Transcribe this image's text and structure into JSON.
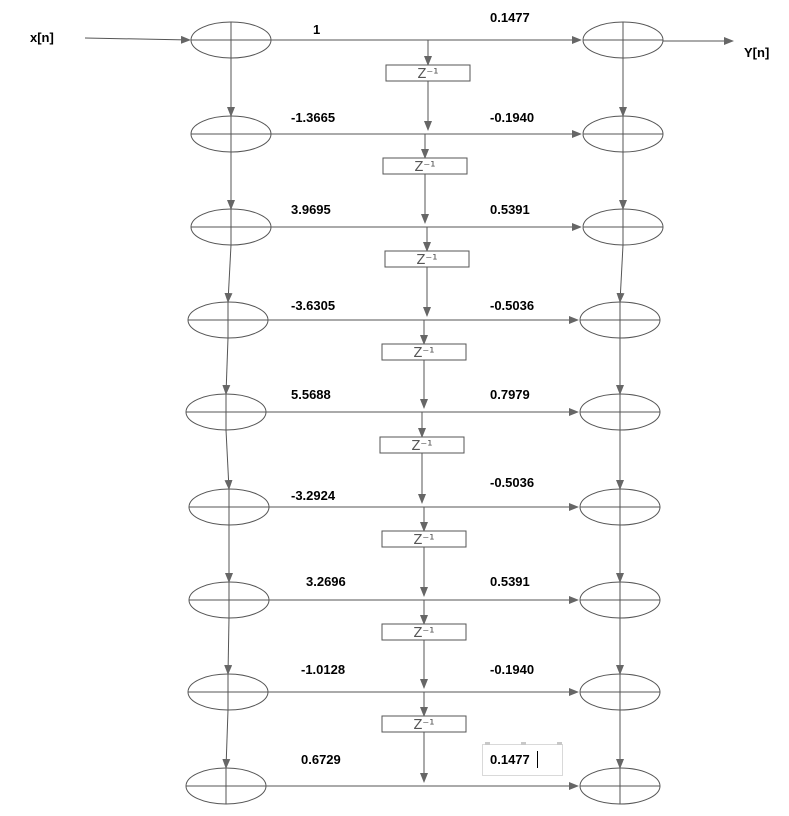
{
  "diagram": {
    "input_label": "x[n]",
    "output_label": "Y[n]",
    "delay_label": "Z⁻¹",
    "feedforward_coefficients": [
      "1",
      "-1.3665",
      "3.9695",
      "-3.6305",
      "5.5688",
      "-3.2924",
      "3.2696",
      "-1.0128",
      "0.6729"
    ],
    "feedback_coefficients": [
      "0.1477",
      "-0.1940",
      "0.5391",
      "-0.5036",
      "0.7979",
      "-0.5036",
      "0.5391",
      "-0.1940",
      "0.1477"
    ]
  }
}
